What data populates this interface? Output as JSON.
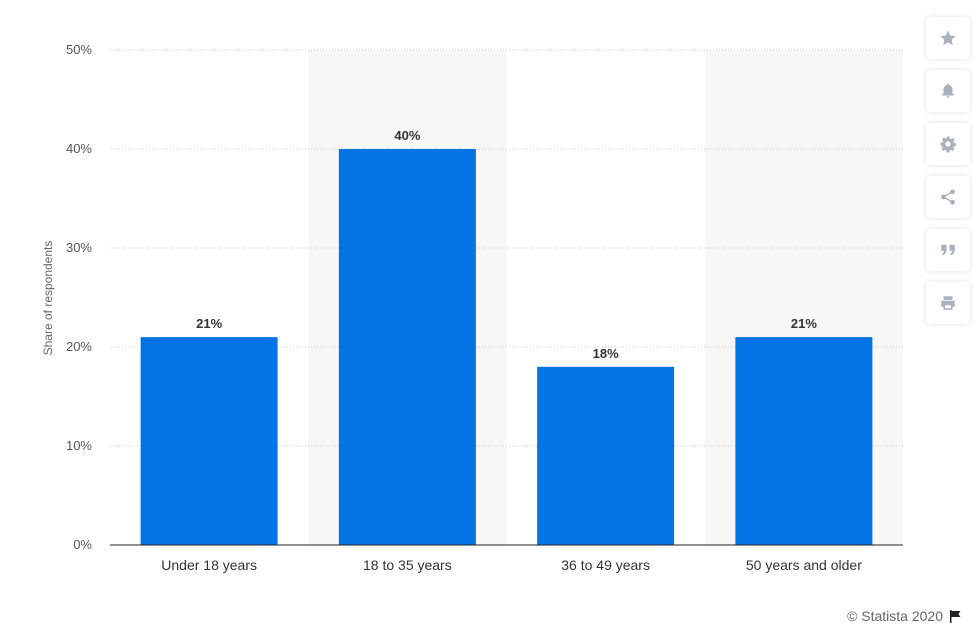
{
  "chart_data": {
    "type": "bar",
    "categories": [
      "Under 18 years",
      "18 to 35 years",
      "36 to 49 years",
      "50 years and older"
    ],
    "values": [
      21,
      40,
      18,
      21
    ],
    "value_labels": [
      "21%",
      "40%",
      "18%",
      "21%"
    ],
    "ylabel": "Share of respondents",
    "xlabel": "",
    "ylim": [
      0,
      50
    ],
    "yticks": [
      0,
      10,
      20,
      30,
      40,
      50
    ],
    "ytick_labels": [
      "0%",
      "10%",
      "20%",
      "30%",
      "40%",
      "50%"
    ],
    "grid": true,
    "alternating_band_shading": true,
    "bar_color": "#0474e4"
  },
  "toolbar": {
    "icons": [
      "star-icon",
      "bell-icon",
      "gear-icon",
      "share-icon",
      "quote-icon",
      "print-icon"
    ]
  },
  "credit": {
    "text": "© Statista 2020"
  },
  "colors": {
    "icon": "#a9b1bd",
    "band": "#f7f7f7",
    "gridline": "#cccccc"
  }
}
